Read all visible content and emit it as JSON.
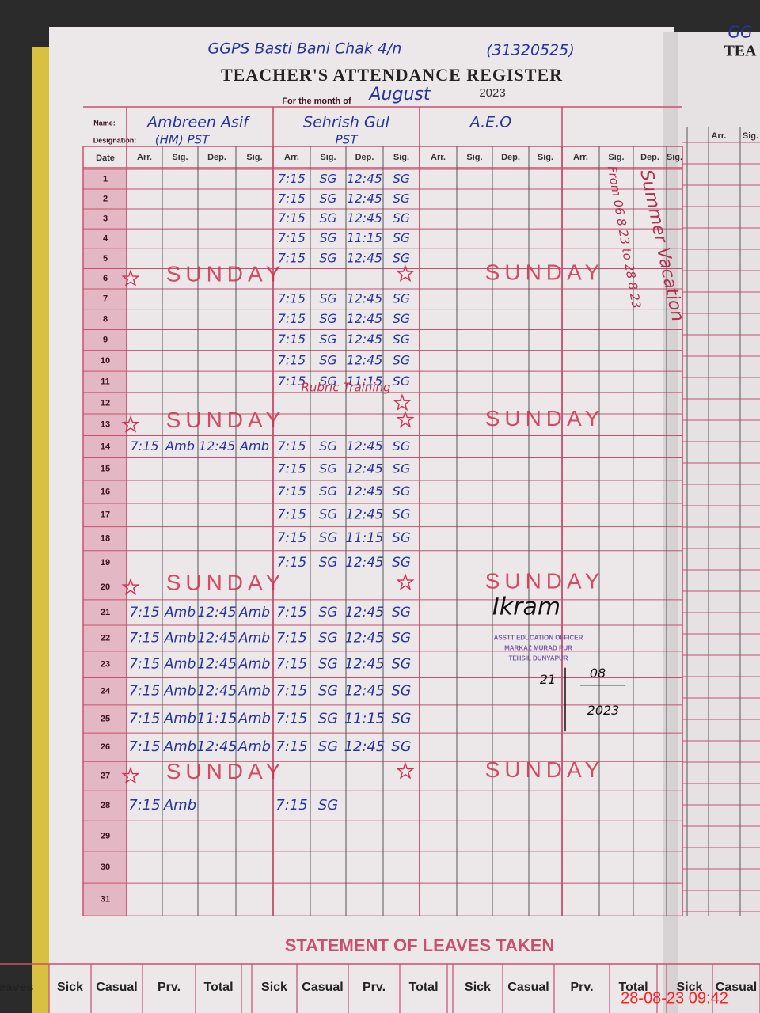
{
  "header": {
    "school": "GGPS Basti Bani Chak 4/n",
    "code": "(31320525)",
    "title": "TEACHER'S ATTENDANCE REGISTER",
    "month_label": "For the month of",
    "month": "August",
    "year": "2023"
  },
  "labels": {
    "name": "Name:",
    "designation": "Designation:",
    "date": "Date"
  },
  "teachers": [
    {
      "name": "Ambreen Asif",
      "designation": "(HM) PST",
      "columns": [
        "Arr.",
        "Sig.",
        "Dep.",
        "Sig."
      ]
    },
    {
      "name": "Sehrish Gul",
      "designation": "PST",
      "columns": [
        "Arr.",
        "Sig.",
        "Dep.",
        "Sig."
      ]
    },
    {
      "name": "A.E.O",
      "columns": [
        "Arr.",
        "Sig.",
        "Dep.",
        "Sig."
      ]
    },
    {
      "columns": [
        "Arr.",
        "Sig.",
        "Dep.",
        "Sig."
      ]
    }
  ],
  "rows": [
    {
      "date": "1",
      "teacher_2": [
        "7:15",
        "SG",
        "12:45",
        "SG"
      ]
    },
    {
      "date": "2",
      "teacher_2": [
        "7:15",
        "SG",
        "12:45",
        "SG"
      ]
    },
    {
      "date": "3",
      "teacher_2": [
        "7:15",
        "SG",
        "12:45",
        "SG"
      ]
    },
    {
      "date": "4",
      "teacher_2": [
        "7:15",
        "SG",
        "11:15",
        "SG"
      ]
    },
    {
      "date": "5",
      "teacher_2": [
        "7:15",
        "SG",
        "12:45",
        "SG"
      ]
    },
    {
      "date": "6",
      "sunday_a": "SUNDAY",
      "sunday_b": "SUNDAY"
    },
    {
      "date": "7",
      "teacher_2": [
        "7:15",
        "SG",
        "12:45",
        "SG"
      ]
    },
    {
      "date": "8",
      "teacher_2": [
        "7:15",
        "SG",
        "12:45",
        "SG"
      ]
    },
    {
      "date": "9",
      "teacher_2": [
        "7:15",
        "SG",
        "12:45",
        "SG"
      ]
    },
    {
      "date": "10",
      "teacher_2": [
        "7:15",
        "SG",
        "12:45",
        "SG"
      ]
    },
    {
      "date": "11",
      "teacher_2": [
        "7:15",
        "SG",
        "11:15",
        "SG"
      ]
    },
    {
      "date": "12",
      "note": "Rubric Training"
    },
    {
      "date": "13",
      "sunday_a": "SUNDAY",
      "sunday_b": "SUNDAY"
    },
    {
      "date": "14",
      "teacher_1": [
        "7:15",
        "Amb",
        "12:45",
        "Amb"
      ],
      "teacher_2": [
        "7:15",
        "SG",
        "12:45",
        "SG"
      ]
    },
    {
      "date": "15",
      "teacher_2": [
        "7:15",
        "SG",
        "12:45",
        "SG"
      ]
    },
    {
      "date": "16",
      "teacher_2": [
        "7:15",
        "SG",
        "12:45",
        "SG"
      ]
    },
    {
      "date": "17",
      "teacher_2": [
        "7:15",
        "SG",
        "12:45",
        "SG"
      ]
    },
    {
      "date": "18",
      "teacher_2": [
        "7:15",
        "SG",
        "11:15",
        "SG"
      ]
    },
    {
      "date": "19",
      "teacher_2": [
        "7:15",
        "SG",
        "12:45",
        "SG"
      ]
    },
    {
      "date": "20",
      "sunday_a": "SUNDAY",
      "sunday_b": "SUNDAY"
    },
    {
      "date": "21",
      "teacher_1": [
        "7:15",
        "Amb",
        "12:45",
        "Amb"
      ],
      "teacher_2": [
        "7:15",
        "SG",
        "12:45",
        "SG"
      ]
    },
    {
      "date": "22",
      "teacher_1": [
        "7:15",
        "Amb",
        "12:45",
        "Amb"
      ],
      "teacher_2": [
        "7:15",
        "SG",
        "12:45",
        "SG"
      ]
    },
    {
      "date": "23",
      "teacher_1": [
        "7:15",
        "Amb",
        "12:45",
        "Amb"
      ],
      "teacher_2": [
        "7:15",
        "SG",
        "12:45",
        "SG"
      ]
    },
    {
      "date": "24",
      "teacher_1": [
        "7:15",
        "Amb",
        "12:45",
        "Amb"
      ],
      "teacher_2": [
        "7:15",
        "SG",
        "12:45",
        "SG"
      ]
    },
    {
      "date": "25",
      "teacher_1": [
        "7:15",
        "Amb",
        "11:15",
        "Amb"
      ],
      "teacher_2": [
        "7:15",
        "SG",
        "11:15",
        "SG"
      ]
    },
    {
      "date": "26",
      "teacher_1": [
        "7:15",
        "Amb",
        "12:45",
        "Amb"
      ],
      "teacher_2": [
        "7:15",
        "SG",
        "12:45",
        "SG"
      ]
    },
    {
      "date": "27",
      "sunday_a": "SUNDAY",
      "sunday_b": "SUNDAY"
    },
    {
      "date": "28",
      "teacher_1": [
        "7:15",
        "Amb"
      ],
      "teacher_2": [
        "7:15",
        "SG"
      ]
    },
    {
      "date": "29"
    },
    {
      "date": "30"
    },
    {
      "date": "31"
    }
  ],
  "vacation_note": [
    "From 06 8 23 to 28 8 23",
    "Summer Vacation"
  ],
  "aeo_visit": {
    "signature": "Ikram",
    "stamp": [
      "ASSTT EDUCATION OFFICER",
      "MARKAZ MURAD PUR",
      "TEHSIL DUNYAPUR"
    ],
    "day": "21",
    "month": "08",
    "year": "2023"
  },
  "leaves": {
    "title": "STATEMENT OF LEAVES TAKEN",
    "first": "eaves",
    "groups": [
      [
        "Sick",
        "Casual",
        "Prv.",
        "Total"
      ],
      [
        "Sick",
        "Casual",
        "Prv.",
        "Total"
      ],
      [
        "Sick",
        "Casual",
        "Prv.",
        "Total"
      ],
      [
        "Sick",
        "Casual"
      ]
    ]
  },
  "right_page": {
    "school": "GG",
    "title": "TEA",
    "columns": [
      "Arr.",
      "Sig."
    ]
  },
  "timestamp": "28-08-23 09:42"
}
